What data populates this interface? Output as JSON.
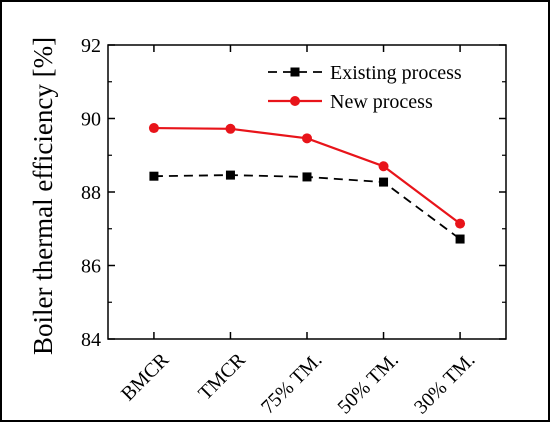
{
  "chart_data": {
    "type": "line",
    "title": "",
    "xlabel": "",
    "ylabel": "Boiler thermal efficiency [%]",
    "categories": [
      "BMCR",
      "TMCR",
      "75% TM.",
      "50% TM.",
      "30% TM."
    ],
    "ylim": [
      84,
      92
    ],
    "yticks": [
      84,
      86,
      88,
      90,
      92
    ],
    "grid": false,
    "legend_position": "top-right",
    "series": [
      {
        "name": "Existing process",
        "values": [
          88.43,
          88.46,
          88.41,
          88.27,
          86.72
        ],
        "color": "#000000",
        "line_style": "dashed",
        "marker": "square"
      },
      {
        "name": "New process",
        "values": [
          89.74,
          89.72,
          89.46,
          88.7,
          87.14
        ],
        "color": "#e8141a",
        "line_style": "solid",
        "marker": "circle"
      }
    ]
  }
}
